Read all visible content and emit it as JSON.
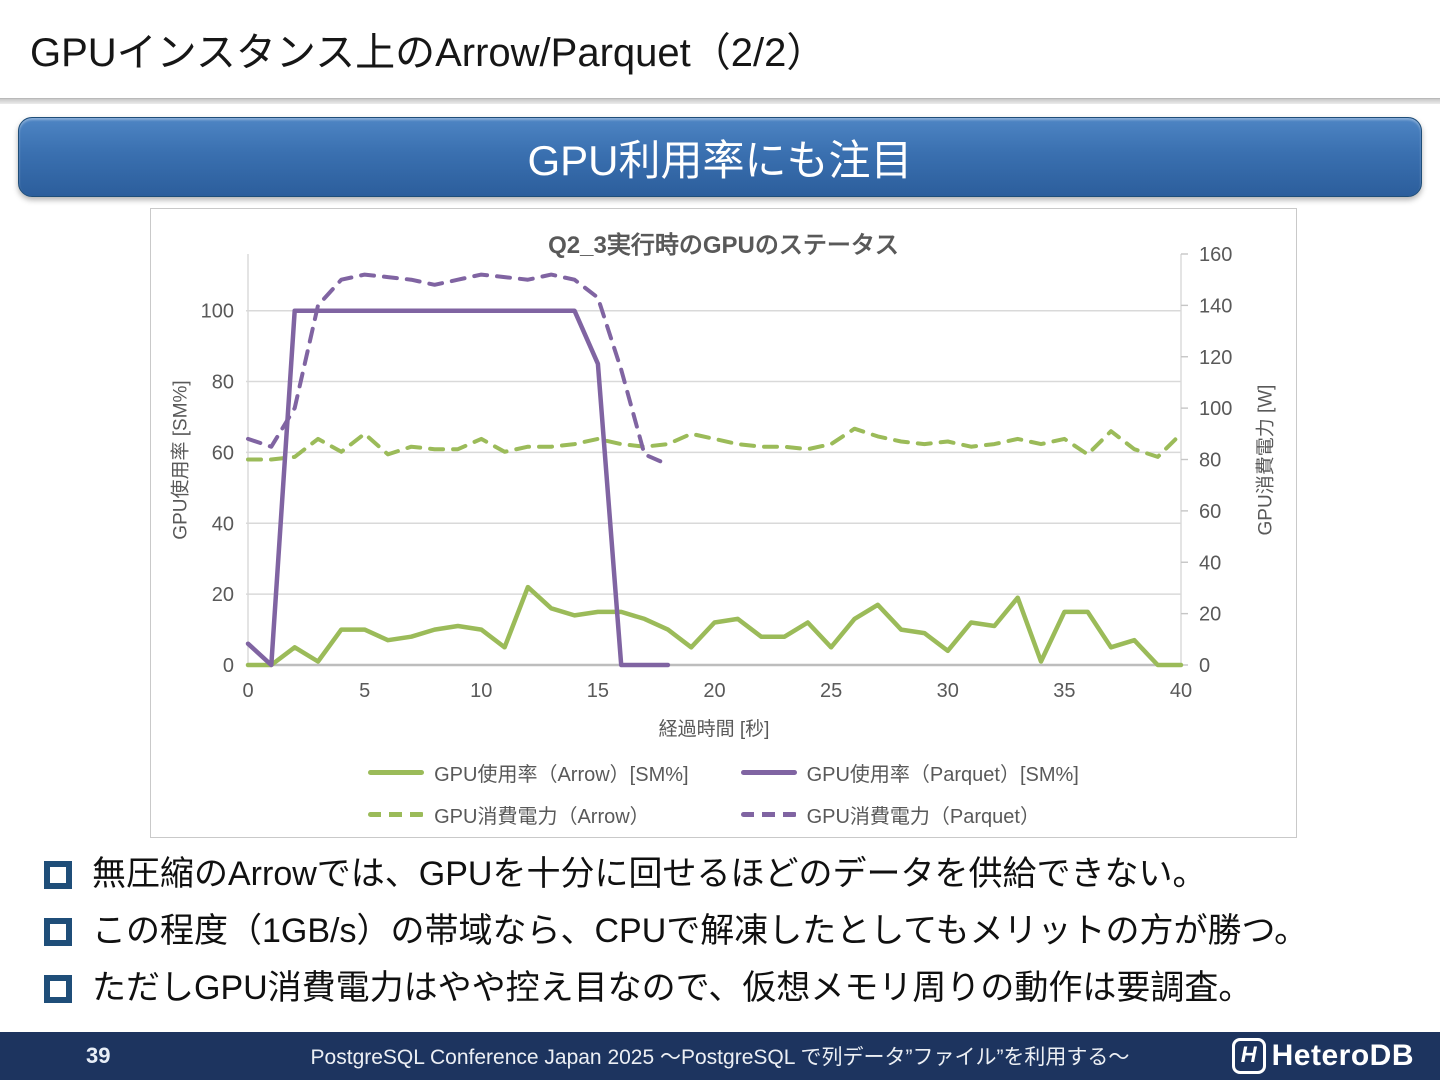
{
  "slide": {
    "title": "GPUインスタンス上のArrow/Parquet（2/2）",
    "banner": "GPU利用率にも注目",
    "bullets": [
      "無圧縮のArrowでは、GPUを十分に回せるほどのデータを供給できない。",
      "この程度（1GB/s）の帯域なら、CPUで解凍したとしてもメリットの方が勝つ。",
      "ただしGPU消費電力はやや控え目なので、仮想メモリ周りの動作は要調査。"
    ],
    "footer": {
      "page": "39",
      "conference": "PostgreSQL Conference Japan 2025 ～PostgreSQL で列データ”ファイル”を利用する～",
      "logo_mark": "H",
      "logo_text": "HeteroDB"
    }
  },
  "chart_data": {
    "type": "line",
    "title": "Q2_3実行時のGPUのステータス",
    "xlabel": "経過時間 [秒]",
    "ylabel_left": "GPU使用率 [SM%]",
    "ylabel_right": "GPU消費電力 [W]",
    "xlim": [
      0,
      40
    ],
    "ylim_left": [
      0,
      100
    ],
    "ylim_right": [
      0,
      160
    ],
    "x_ticks": [
      0,
      5,
      10,
      15,
      20,
      25,
      30,
      35,
      40
    ],
    "y_left_ticks": [
      0,
      20,
      40,
      60,
      80,
      100
    ],
    "y_right_ticks": [
      0,
      20,
      40,
      60,
      80,
      100,
      120,
      140,
      160
    ],
    "layout": {
      "left_units_max": 116,
      "grid": "horizontal",
      "legend_position": "bottom"
    },
    "colors": {
      "arrow": "#9BBB59",
      "parquet": "#8064A2"
    },
    "x": [
      0,
      1,
      2,
      3,
      4,
      5,
      6,
      7,
      8,
      9,
      10,
      11,
      12,
      13,
      14,
      15,
      16,
      17,
      18,
      19,
      20,
      21,
      22,
      23,
      24,
      25,
      26,
      27,
      28,
      29,
      30,
      31,
      32,
      33,
      34,
      35,
      36,
      37,
      38,
      39,
      40
    ],
    "series": [
      {
        "id": "arrow-usage",
        "name": "GPU使用率（Arrow）[SM%]",
        "axis": "left",
        "style": "solid",
        "color": "#9BBB59",
        "values": [
          0,
          0,
          5,
          1,
          10,
          10,
          7,
          8,
          10,
          11,
          10,
          5,
          22,
          16,
          14,
          15,
          15,
          13,
          10,
          5,
          12,
          13,
          8,
          8,
          12,
          5,
          13,
          17,
          10,
          9,
          4,
          12,
          11,
          19,
          1,
          15,
          15,
          5,
          7,
          0,
          0
        ]
      },
      {
        "id": "parquet-usage",
        "name": "GPU使用率（Parquet）[SM%]",
        "axis": "left",
        "style": "solid",
        "color": "#8064A2",
        "values": [
          6,
          0,
          100,
          100,
          100,
          100,
          100,
          100,
          100,
          100,
          100,
          100,
          100,
          100,
          100,
          85,
          0,
          0,
          0,
          null,
          null,
          null,
          null,
          null,
          null,
          null,
          null,
          null,
          null,
          null,
          null,
          null,
          null,
          null,
          null,
          null,
          null,
          null,
          null,
          null,
          null
        ]
      },
      {
        "id": "arrow-power",
        "name": "GPU消費電力（Arrow）",
        "axis": "right",
        "style": "dashed",
        "color": "#9BBB59",
        "values": [
          80,
          80,
          81,
          88,
          83,
          90,
          82,
          85,
          84,
          84,
          88,
          83,
          85,
          85,
          86,
          88,
          86,
          85,
          86,
          90,
          88,
          86,
          85,
          85,
          84,
          86,
          92,
          89,
          87,
          86,
          87,
          85,
          86,
          88,
          86,
          88,
          82,
          91,
          84,
          81,
          90
        ]
      },
      {
        "id": "parquet-power",
        "name": "GPU消費電力（Parquet）",
        "axis": "right",
        "style": "dashed",
        "color": "#8064A2",
        "values": [
          88,
          85,
          100,
          140,
          150,
          152,
          151,
          150,
          148,
          150,
          152,
          151,
          150,
          152,
          150,
          143,
          115,
          82,
          78,
          null,
          null,
          null,
          null,
          null,
          null,
          null,
          null,
          null,
          null,
          null,
          null,
          null,
          null,
          null,
          null,
          null,
          null,
          null,
          null,
          null,
          null
        ]
      }
    ]
  }
}
